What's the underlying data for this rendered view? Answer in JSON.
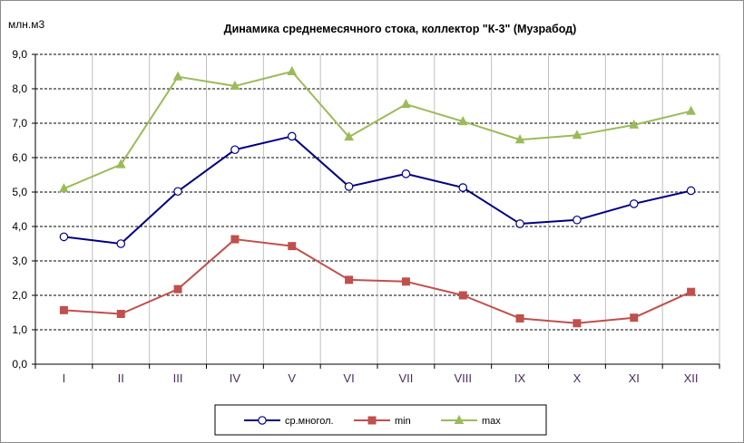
{
  "chart_data": {
    "type": "line",
    "title": "Динамика среднемесячного стока, коллектор \"К-3\" (Музрабод)",
    "ylabel": "млн.м3",
    "xlabel": "",
    "ylim": [
      0,
      9
    ],
    "y_ticks": [
      "0,0",
      "1,0",
      "2,0",
      "3,0",
      "4,0",
      "5,0",
      "6,0",
      "7,0",
      "8,0",
      "9,0"
    ],
    "categories": [
      "I",
      "II",
      "III",
      "IV",
      "V",
      "VI",
      "VII",
      "VIII",
      "IX",
      "X",
      "XI",
      "XII"
    ],
    "grid": true,
    "legend_position": "bottom",
    "series": [
      {
        "name": "ср.многол.",
        "color": "#000080",
        "marker": "circle",
        "values": [
          3.7,
          3.5,
          5.02,
          6.23,
          6.62,
          5.16,
          5.53,
          5.13,
          4.08,
          4.19,
          4.66,
          5.04
        ]
      },
      {
        "name": "min",
        "color": "#c0504d",
        "marker": "square",
        "values": [
          1.57,
          1.46,
          2.18,
          3.63,
          3.43,
          2.45,
          2.4,
          2.0,
          1.33,
          1.19,
          1.35,
          2.1
        ]
      },
      {
        "name": "max",
        "color": "#9bbb59",
        "marker": "triangle",
        "values": [
          5.1,
          5.8,
          8.35,
          8.08,
          8.5,
          6.6,
          7.55,
          7.05,
          6.52,
          6.65,
          6.95,
          7.35
        ]
      }
    ]
  }
}
